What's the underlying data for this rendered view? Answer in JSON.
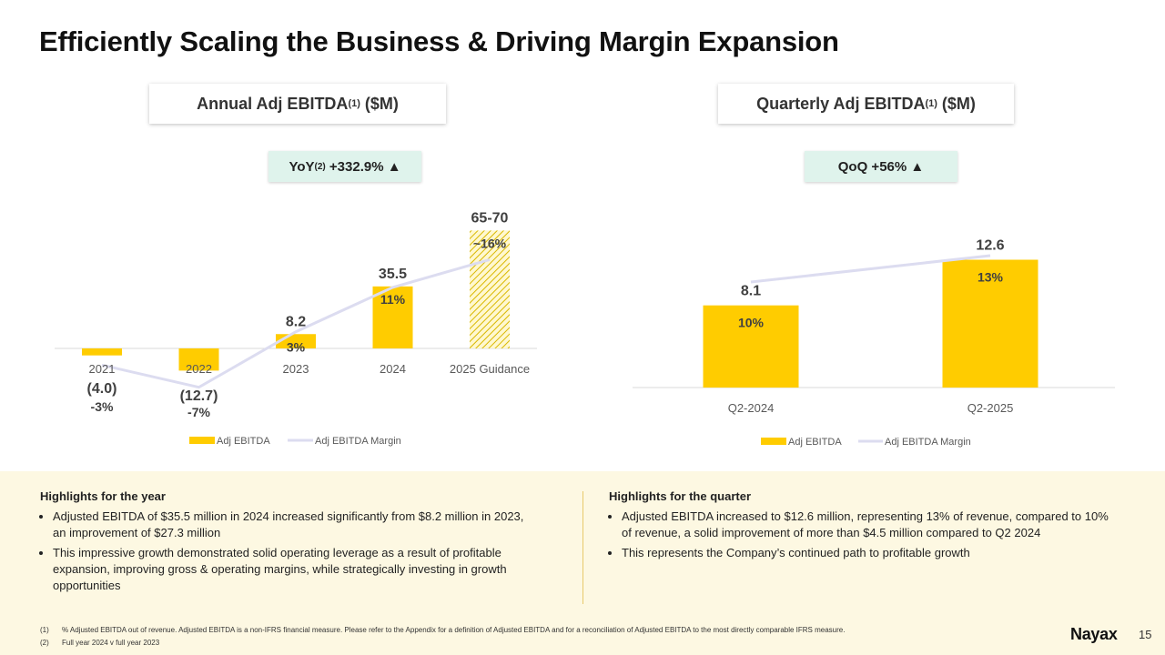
{
  "title": "Efficiently Scaling the Business & Driving Margin Expansion",
  "left_header": {
    "text": "Annual Adj EBITDA",
    "sup": "(1)",
    "suffix": " ($M)"
  },
  "right_header": {
    "text": "Quarterly Adj EBITDA",
    "sup": "(1)",
    "suffix": " ($M)"
  },
  "left_pill": {
    "prefix": "YoY",
    "sup": "(2)",
    "value": " +332.9% ▲"
  },
  "right_pill": {
    "value": "QoQ +56% ▲"
  },
  "colors": {
    "bar": "#ffcc00",
    "line": "#dcdcf0",
    "pill_bg": "#dff3ec",
    "bottom_bg": "#fdf8e2"
  },
  "chart_data": [
    {
      "type": "bar",
      "categories": [
        "2021",
        "2022",
        "2023",
        "2024",
        "2025 Guidance"
      ],
      "series": [
        {
          "name": "Adj EBITDA",
          "values": [
            -4.0,
            -12.7,
            8.2,
            35.5,
            67.5
          ],
          "labels": [
            "(4.0)",
            "(12.7)",
            "8.2",
            "35.5",
            "65-70"
          ]
        },
        {
          "name": "Adj EBITDA Margin",
          "values": [
            -3,
            -7,
            3,
            11,
            16
          ],
          "labels": [
            "-3%",
            "-7%",
            "3%",
            "11%",
            "~16%"
          ]
        }
      ],
      "hatched": [
        false,
        false,
        false,
        false,
        true
      ],
      "legend": "bottom"
    },
    {
      "type": "bar",
      "categories": [
        "Q2-2024",
        "Q2-2025"
      ],
      "series": [
        {
          "name": "Adj EBITDA",
          "values": [
            8.1,
            12.6
          ],
          "labels": [
            "8.1",
            "12.6"
          ]
        },
        {
          "name": "Adj EBITDA Margin",
          "values": [
            10,
            13
          ],
          "labels": [
            "10%",
            "13%"
          ]
        }
      ],
      "legend": "bottom"
    }
  ],
  "highlights_year": {
    "heading": "Highlights for the year",
    "bullets": [
      "Adjusted EBITDA of $35.5 million in 2024 increased significantly from $8.2 million in 2023, an improvement of $27.3 million",
      "This impressive growth demonstrated solid operating leverage as a result of profitable expansion, improving gross & operating margins, while strategically investing in growth opportunities"
    ]
  },
  "highlights_quarter": {
    "heading": "Highlights for the quarter",
    "bullets": [
      "Adjusted EBITDA increased to $12.6 million, representing 13% of revenue, compared to 10% of revenue, a solid improvement of more than $4.5 million compared to Q2 2024",
      "This represents the Company’s continued path to profitable growth"
    ]
  },
  "footnotes": [
    {
      "num": "(1)",
      "text": "% Adjusted EBITDA out of revenue. Adjusted EBITDA is a non-IFRS financial measure. Please refer to the Appendix for a definition of Adjusted EBITDA and for a reconciliation of Adjusted EBITDA to the most directly comparable IFRS measure."
    },
    {
      "num": "(2)",
      "text": "Full year 2024 v full year 2023"
    }
  ],
  "logo": "Nayax",
  "page_number": "15"
}
